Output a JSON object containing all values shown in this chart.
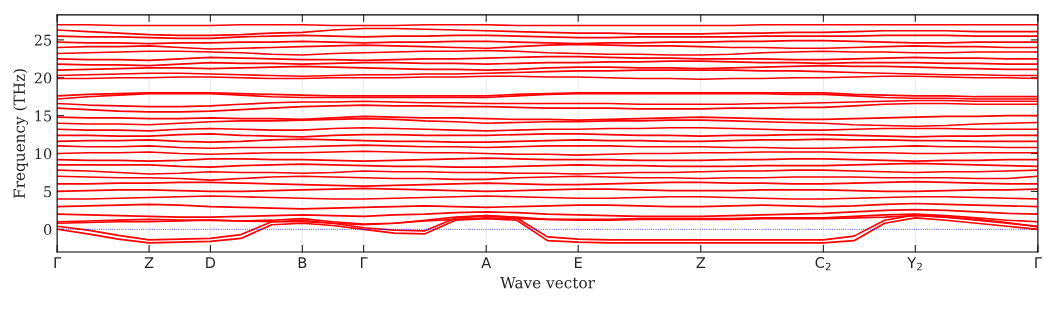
{
  "chart_data": {
    "type": "line",
    "xlabel": "Wave vector",
    "ylabel": "Frequency (THz)",
    "ylim": [
      -3,
      28.3
    ],
    "categories": [
      "Γ",
      null,
      null,
      "Z",
      null,
      "D",
      null,
      null,
      "B",
      null,
      "Γ",
      null,
      null,
      null,
      "A",
      null,
      null,
      "E",
      null,
      null,
      null,
      "Z",
      null,
      null,
      null,
      "C$_{2}$",
      null,
      null,
      "Y$_{2}$",
      null,
      null,
      null,
      "Γ"
    ],
    "yticks": [
      0,
      5,
      10,
      15,
      20,
      25
    ],
    "grid": "x",
    "line_style": "solid",
    "marker": "none",
    "legend": false,
    "ref_lines": [
      {
        "axis": "y",
        "value": 0,
        "color": "#0000ff",
        "line_style": "dotted"
      }
    ],
    "series": [
      {
        "color": "#ff0000",
        "values": [
          0,
          -0.6,
          -1.3,
          -1.8,
          -1.7,
          -1.6,
          -1.2,
          0.6,
          0.8,
          0.5,
          0,
          -0.5,
          -0.6,
          1.2,
          1.4,
          1.2,
          -1.5,
          -1.7,
          -1.8,
          -1.8,
          -1.8,
          -1.8,
          -1.8,
          -1.8,
          -1.8,
          -1.8,
          -1.5,
          0.8,
          1.5,
          1.2,
          0.8,
          0.4,
          0
        ]
      },
      {
        "color": "#ff0000",
        "values": [
          0.4,
          -0.1,
          -0.8,
          -1.4,
          -1.3,
          -1.2,
          -0.7,
          1.0,
          1.2,
          0.8,
          0.2,
          -0.1,
          -0.2,
          1.5,
          1.8,
          1.5,
          -1.0,
          -1.3,
          -1.4,
          -1.4,
          -1.4,
          -1.4,
          -1.4,
          -1.4,
          -1.4,
          -1.4,
          -0.9,
          1.2,
          1.9,
          1.6,
          1.2,
          0.8,
          0.4
        ]
      },
      {
        "color": "#ff0000",
        "values": [
          0.8,
          0.9,
          1.0,
          1.0,
          1.1,
          1.2,
          1.1,
          1.2,
          1.4,
          1.0,
          0.7,
          0.8,
          1.2,
          1.6,
          1.8,
          1.6,
          1.3,
          1.2,
          1.2,
          1.3,
          1.3,
          1.3,
          1.3,
          1.4,
          1.4,
          1.4,
          1.5,
          1.6,
          1.8,
          1.6,
          1.3,
          0.9,
          0.3
        ]
      },
      {
        "color": "#ff0000",
        "values": [
          1.0,
          1.1,
          1.2,
          1.3,
          1.2,
          1.2,
          1.1,
          1.0,
          1.0,
          0.8,
          0.6,
          0.8,
          1.1,
          1.3,
          1.5,
          1.4,
          1.3,
          1.3,
          1.3,
          1.4,
          1.4,
          1.4,
          1.4,
          1.5,
          1.5,
          1.5,
          1.7,
          1.9,
          2.0,
          1.8,
          1.5,
          1.2,
          1.0
        ]
      },
      {
        "color": "#ff0000",
        "values": [
          2.0,
          1.9,
          1.8,
          1.7,
          1.6,
          1.6,
          1.7,
          1.8,
          1.9,
          1.8,
          1.7,
          1.9,
          2.0,
          2.2,
          2.3,
          2.2,
          2.0,
          1.9,
          1.8,
          1.7,
          1.7,
          1.7,
          1.8,
          1.9,
          2.0,
          2.1,
          2.3,
          2.5,
          2.6,
          2.5,
          2.3,
          2.1,
          2.0
        ]
      },
      {
        "color": "#ff0000",
        "values": [
          3.0,
          3.1,
          3.2,
          3.3,
          3.2,
          3.0,
          2.9,
          2.8,
          2.7,
          2.8,
          2.9,
          3.0,
          3.1,
          3.0,
          2.9,
          3.0,
          3.1,
          3.2,
          3.2,
          3.1,
          3.0,
          3.0,
          3.1,
          3.2,
          3.1,
          3.0,
          3.1,
          3.3,
          3.4,
          3.3,
          3.2,
          3.1,
          3.0
        ]
      },
      {
        "color": "#ff0000",
        "values": [
          4.0,
          4.0,
          4.1,
          4.2,
          4.3,
          4.4,
          4.3,
          4.2,
          4.1,
          4.0,
          4.0,
          4.1,
          4.2,
          4.3,
          4.4,
          4.3,
          4.2,
          4.1,
          4.1,
          4.2,
          4.3,
          4.3,
          4.2,
          4.1,
          4.0,
          4.0,
          4.1,
          4.2,
          4.3,
          4.3,
          4.2,
          4.1,
          4.0
        ]
      },
      {
        "color": "#ff0000",
        "values": [
          5.0,
          5.1,
          5.2,
          5.2,
          5.1,
          5.0,
          5.0,
          5.1,
          5.2,
          5.3,
          5.4,
          5.3,
          5.2,
          5.1,
          5.0,
          5.1,
          5.2,
          5.3,
          5.3,
          5.2,
          5.1,
          5.1,
          5.1,
          5.2,
          5.2,
          5.2,
          5.1,
          5.0,
          5.0,
          5.1,
          5.2,
          5.2,
          5.3
        ]
      },
      {
        "color": "#ff0000",
        "values": [
          6.0,
          6.0,
          6.1,
          6.1,
          6.2,
          6.2,
          6.1,
          6.0,
          5.9,
          5.8,
          5.7,
          5.8,
          5.9,
          6.0,
          6.1,
          6.0,
          5.9,
          5.9,
          6.0,
          6.1,
          6.2,
          6.2,
          6.1,
          6.1,
          6.0,
          6.0,
          6.1,
          6.2,
          6.3,
          6.2,
          6.1,
          6.0,
          6.0
        ]
      },
      {
        "color": "#ff0000",
        "values": [
          7.0,
          6.9,
          6.8,
          6.8,
          6.7,
          6.5,
          6.7,
          6.9,
          7.0,
          6.9,
          6.8,
          6.7,
          6.7,
          6.6,
          6.6,
          6.8,
          6.9,
          7.0,
          6.9,
          6.8,
          6.8,
          6.7,
          6.8,
          6.8,
          6.9,
          6.9,
          6.9,
          6.8,
          6.8,
          6.8,
          6.7,
          6.7,
          7.0
        ]
      },
      {
        "color": "#ff0000",
        "values": [
          7.8,
          7.7,
          7.5,
          7.3,
          7.4,
          7.6,
          7.5,
          7.5,
          7.4,
          7.5,
          7.7,
          7.6,
          7.6,
          7.5,
          7.5,
          7.4,
          7.4,
          7.3,
          7.4,
          7.5,
          7.5,
          7.6,
          7.7,
          7.7,
          7.8,
          7.8,
          7.7,
          7.6,
          7.5,
          7.6,
          7.6,
          7.7,
          7.8
        ]
      },
      {
        "color": "#ff0000",
        "values": [
          8.5,
          8.5,
          8.5,
          8.5,
          8.3,
          8.2,
          8.4,
          8.5,
          8.6,
          8.5,
          8.4,
          8.3,
          8.3,
          8.2,
          8.2,
          8.3,
          8.4,
          8.5,
          8.4,
          8.4,
          8.3,
          8.3,
          8.3,
          8.4,
          8.4,
          8.4,
          8.5,
          8.6,
          8.7,
          8.6,
          8.5,
          8.4,
          8.3
        ]
      },
      {
        "color": "#ff0000",
        "values": [
          9.2,
          9.1,
          9.1,
          9.0,
          9.1,
          9.3,
          9.3,
          9.2,
          9.2,
          9.1,
          9.0,
          9.1,
          9.2,
          9.3,
          9.4,
          9.3,
          9.2,
          9.2,
          9.2,
          9.1,
          9.1,
          9.1,
          9.2,
          9.2,
          9.3,
          9.3,
          9.2,
          9.1,
          9.0,
          9.1,
          9.1,
          9.2,
          9.2
        ]
      },
      {
        "color": "#ff0000",
        "values": [
          10.0,
          10.1,
          10.1,
          10.2,
          10.0,
          9.9,
          10.0,
          10.1,
          10.1,
          10.2,
          10.3,
          10.2,
          10.1,
          10.1,
          10.0,
          9.9,
          9.9,
          9.8,
          9.9,
          10.0,
          10.0,
          10.1,
          10.1,
          10.2,
          10.2,
          10.2,
          10.1,
          10.1,
          10.0,
          10.0,
          10.1,
          10.1,
          10.1
        ]
      },
      {
        "color": "#ff0000",
        "values": [
          11.0,
          10.9,
          10.9,
          11.0,
          10.8,
          10.7,
          10.8,
          10.8,
          10.9,
          11.0,
          11.1,
          11.0,
          10.9,
          10.9,
          10.8,
          10.9,
          11.0,
          11.0,
          11.0,
          10.9,
          10.9,
          10.9,
          10.8,
          10.8,
          10.7,
          10.7,
          10.8,
          10.9,
          11.0,
          10.9,
          10.9,
          10.8,
          10.8
        ]
      },
      {
        "color": "#ff0000",
        "values": [
          11.6,
          11.7,
          11.7,
          11.8,
          11.6,
          11.5,
          11.6,
          11.8,
          11.9,
          11.8,
          11.7,
          11.6,
          11.6,
          11.5,
          11.5,
          11.6,
          11.7,
          11.8,
          11.7,
          11.7,
          11.6,
          11.6,
          11.7,
          11.8,
          11.8,
          11.9,
          11.8,
          11.8,
          11.7,
          11.7,
          11.6,
          11.6,
          11.6
        ]
      },
      {
        "color": "#ff0000",
        "values": [
          12.4,
          12.4,
          12.3,
          12.3,
          12.5,
          12.6,
          12.4,
          12.3,
          12.2,
          12.4,
          12.5,
          12.5,
          12.4,
          12.4,
          12.4,
          12.5,
          12.6,
          12.6,
          12.5,
          12.4,
          12.4,
          12.3,
          12.4,
          12.4,
          12.5,
          12.5,
          12.4,
          12.3,
          12.2,
          12.3,
          12.3,
          12.4,
          12.4
        ]
      },
      {
        "color": "#ff0000",
        "values": [
          13.2,
          13.1,
          13.1,
          13.0,
          13.2,
          13.3,
          13.2,
          13.1,
          13.1,
          13.3,
          13.4,
          13.3,
          13.2,
          13.1,
          13.0,
          13.1,
          13.2,
          13.2,
          13.3,
          13.3,
          13.4,
          13.4,
          13.3,
          13.2,
          13.1,
          13.1,
          13.2,
          13.3,
          13.3,
          13.3,
          13.2,
          13.2,
          13.2
        ]
      },
      {
        "color": "#ff0000",
        "values": [
          14.0,
          13.9,
          13.9,
          13.8,
          14.0,
          14.2,
          14.3,
          14.3,
          14.4,
          14.5,
          14.6,
          14.5,
          14.3,
          14.2,
          14.0,
          14.1,
          14.2,
          14.2,
          14.3,
          14.3,
          14.4,
          14.4,
          14.3,
          14.2,
          14.1,
          14.0,
          13.8,
          13.7,
          13.6,
          13.7,
          13.9,
          14.0,
          14.1
        ]
      },
      {
        "color": "#ff0000",
        "values": [
          14.8,
          14.7,
          14.7,
          14.6,
          14.6,
          14.7,
          14.6,
          14.6,
          14.5,
          14.7,
          14.9,
          14.8,
          14.7,
          14.7,
          14.6,
          14.5,
          14.5,
          14.4,
          14.5,
          14.6,
          14.7,
          14.8,
          14.7,
          14.6,
          14.5,
          14.5,
          14.6,
          14.7,
          14.8,
          14.9,
          14.9,
          15.0,
          15.0
        ]
      },
      {
        "color": "#ff0000",
        "values": [
          16.0,
          15.8,
          15.6,
          15.5,
          15.5,
          15.6,
          15.8,
          16.0,
          16.2,
          16.3,
          16.4,
          16.3,
          16.3,
          16.2,
          16.2,
          16.1,
          16.0,
          16.0,
          16.0,
          15.9,
          15.9,
          15.9,
          16.0,
          16.0,
          16.1,
          16.1,
          16.3,
          16.5,
          16.6,
          16.6,
          16.5,
          16.5,
          16.5
        ]
      },
      {
        "color": "#ff0000",
        "values": [
          16.6,
          16.4,
          16.3,
          16.2,
          16.2,
          16.3,
          16.5,
          16.7,
          16.8,
          16.8,
          16.9,
          16.8,
          16.7,
          16.7,
          16.6,
          16.6,
          16.6,
          16.6,
          16.6,
          16.5,
          16.5,
          16.5,
          16.5,
          16.6,
          16.6,
          16.7,
          16.8,
          16.9,
          17.0,
          17.0,
          16.9,
          16.9,
          16.9
        ]
      },
      {
        "color": "#ff0000",
        "values": [
          17.2,
          17.5,
          17.7,
          17.9,
          17.9,
          17.9,
          17.7,
          17.5,
          17.4,
          17.4,
          17.4,
          17.4,
          17.4,
          17.4,
          17.4,
          17.6,
          17.8,
          17.9,
          17.9,
          17.9,
          17.9,
          17.9,
          17.9,
          17.9,
          17.8,
          17.8,
          17.6,
          17.4,
          17.3,
          17.3,
          17.2,
          17.2,
          17.2
        ]
      },
      {
        "color": "#ff0000",
        "values": [
          17.6,
          17.8,
          17.9,
          18.0,
          18.0,
          18.0,
          17.9,
          17.8,
          17.7,
          17.6,
          17.6,
          17.6,
          17.6,
          17.6,
          17.6,
          17.8,
          17.9,
          18.0,
          18.0,
          18.0,
          18.0,
          18.0,
          18.0,
          18.0,
          18.0,
          18.0,
          17.8,
          17.7,
          17.6,
          17.6,
          17.5,
          17.5,
          17.5
        ]
      },
      {
        "color": "#ff0000",
        "values": [
          19.9,
          19.9,
          20.0,
          20.0,
          20.1,
          20.1,
          20.0,
          19.9,
          19.9,
          20.0,
          20.0,
          20.0,
          20.1,
          20.1,
          20.2,
          20.2,
          20.1,
          20.1,
          20.0,
          19.9,
          19.9,
          19.8,
          19.9,
          19.9,
          20.0,
          20.0,
          20.1,
          20.2,
          20.2,
          20.1,
          20.0,
          20.0,
          19.9
        ]
      },
      {
        "color": "#ff0000",
        "values": [
          20.3,
          20.4,
          20.5,
          20.6,
          20.6,
          20.5,
          20.4,
          20.3,
          20.2,
          20.3,
          20.4,
          20.4,
          20.5,
          20.5,
          20.6,
          20.7,
          20.8,
          20.9,
          20.9,
          21.0,
          21.0,
          21.0,
          21.0,
          20.9,
          20.9,
          20.8,
          20.7,
          20.6,
          20.5,
          20.4,
          20.4,
          20.3,
          20.3
        ]
      },
      {
        "color": "#ff0000",
        "values": [
          21.0,
          21.1,
          21.2,
          21.3,
          21.3,
          21.2,
          21.3,
          21.4,
          21.5,
          21.4,
          21.3,
          21.2,
          21.1,
          21.1,
          21.0,
          21.1,
          21.3,
          21.4,
          21.4,
          21.3,
          21.3,
          21.2,
          21.3,
          21.4,
          21.5,
          21.6,
          21.5,
          21.5,
          21.4,
          21.3,
          21.2,
          21.1,
          21.1
        ]
      },
      {
        "color": "#ff0000",
        "values": [
          21.8,
          21.7,
          21.7,
          21.6,
          21.8,
          22.0,
          21.9,
          21.9,
          21.8,
          21.9,
          22.0,
          22.0,
          21.9,
          21.9,
          21.8,
          21.9,
          22.0,
          22.0,
          22.1,
          22.1,
          22.2,
          22.2,
          22.1,
          22.0,
          22.0,
          21.9,
          22.0,
          22.0,
          22.0,
          21.9,
          21.9,
          21.8,
          21.8
        ]
      },
      {
        "color": "#ff0000",
        "values": [
          22.5,
          22.4,
          22.4,
          22.3,
          22.5,
          22.7,
          22.6,
          22.5,
          22.4,
          22.4,
          22.3,
          22.4,
          22.5,
          22.5,
          22.6,
          22.7,
          22.8,
          22.8,
          22.7,
          22.6,
          22.6,
          22.5,
          22.5,
          22.5,
          22.4,
          22.4,
          22.5,
          22.6,
          22.7,
          22.6,
          22.6,
          22.5,
          22.5
        ]
      },
      {
        "color": "#ff0000",
        "values": [
          23.2,
          23.3,
          23.4,
          23.5,
          23.5,
          23.4,
          23.3,
          23.1,
          23.0,
          23.2,
          23.3,
          23.4,
          23.5,
          23.5,
          23.6,
          23.5,
          23.3,
          23.2,
          23.1,
          23.1,
          23.0,
          23.0,
          23.1,
          23.3,
          23.4,
          23.5,
          23.4,
          23.4,
          23.3,
          23.3,
          23.4,
          23.4,
          23.4
        ]
      },
      {
        "color": "#ff0000",
        "values": [
          24.0,
          24.1,
          24.1,
          24.2,
          24.0,
          23.8,
          23.9,
          24.0,
          24.1,
          24.2,
          24.3,
          24.2,
          24.1,
          24.0,
          23.9,
          24.1,
          24.3,
          24.4,
          24.3,
          24.2,
          24.2,
          24.1,
          24.0,
          24.0,
          23.9,
          23.9,
          24.0,
          24.1,
          24.2,
          24.1,
          24.1,
          24.0,
          24.0
        ]
      },
      {
        "color": "#ff0000",
        "values": [
          24.7,
          24.6,
          24.6,
          24.5,
          24.6,
          24.6,
          24.7,
          24.7,
          24.8,
          24.7,
          24.6,
          24.7,
          24.7,
          24.8,
          24.8,
          24.7,
          24.6,
          24.5,
          24.6,
          24.6,
          24.7,
          24.7,
          24.8,
          24.8,
          24.9,
          24.9,
          24.8,
          24.7,
          24.6,
          24.6,
          24.7,
          24.7,
          24.7
        ]
      },
      {
        "color": "#ff0000",
        "values": [
          25.5,
          25.4,
          25.4,
          25.3,
          25.2,
          25.2,
          25.4,
          25.5,
          25.6,
          25.5,
          25.4,
          25.5,
          25.5,
          25.6,
          25.6,
          25.5,
          25.4,
          25.3,
          25.3,
          25.4,
          25.4,
          25.4,
          25.4,
          25.5,
          25.5,
          25.5,
          25.5,
          25.6,
          25.6,
          25.6,
          25.5,
          25.5,
          25.5
        ]
      },
      {
        "color": "#ff0000",
        "values": [
          26.3,
          26.1,
          25.9,
          25.7,
          25.6,
          25.6,
          25.7,
          25.9,
          26.0,
          26.3,
          26.5,
          26.5,
          26.4,
          26.3,
          26.2,
          26.1,
          26.0,
          25.9,
          25.9,
          25.8,
          25.8,
          25.8,
          25.9,
          25.9,
          26.0,
          26.0,
          26.1,
          26.2,
          26.2,
          26.2,
          26.1,
          26.1,
          26.1
        ]
      },
      {
        "color": "#ff0000",
        "values": [
          27.0,
          27.0,
          26.9,
          26.9,
          26.9,
          26.9,
          27.0,
          27.0,
          27.0,
          26.9,
          26.9,
          26.9,
          27.0,
          27.0,
          27.0,
          26.9,
          26.9,
          26.9,
          26.9,
          26.9,
          26.9,
          26.9,
          26.9,
          27.0,
          27.0,
          27.0,
          27.0,
          27.0,
          27.0,
          27.0,
          27.0,
          27.0,
          27.0
        ]
      }
    ]
  }
}
